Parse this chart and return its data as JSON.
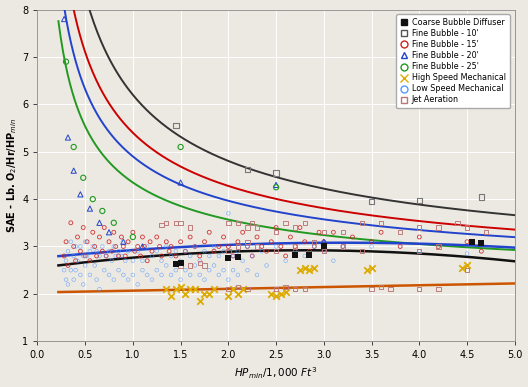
{
  "xlim": [
    0.0,
    5.0
  ],
  "ylim": [
    1.0,
    8.0
  ],
  "xticks": [
    0.0,
    0.5,
    1.0,
    1.5,
    2.0,
    2.5,
    3.0,
    3.5,
    4.0,
    4.5,
    5.0
  ],
  "yticks": [
    1,
    2,
    3,
    4,
    5,
    6,
    7,
    8
  ],
  "bg_color": "#ece9e2",
  "grid_color": "#ffffff",
  "coarse_bubble_pts": [
    [
      1.45,
      2.62
    ],
    [
      1.5,
      2.65
    ],
    [
      2.0,
      2.75
    ],
    [
      2.1,
      2.78
    ],
    [
      2.7,
      2.82
    ],
    [
      2.85,
      2.82
    ],
    [
      3.0,
      3.0
    ],
    [
      4.55,
      3.1
    ],
    [
      4.65,
      3.08
    ]
  ],
  "fine10_pts": [
    [
      1.45,
      5.55
    ],
    [
      2.2,
      4.62
    ],
    [
      2.5,
      4.55
    ],
    [
      3.5,
      3.95
    ],
    [
      4.0,
      3.97
    ],
    [
      4.65,
      4.05
    ]
  ],
  "fine15_scatter": [
    [
      0.28,
      2.8
    ],
    [
      0.3,
      3.1
    ],
    [
      0.32,
      2.6
    ],
    [
      0.35,
      3.5
    ],
    [
      0.38,
      3.0
    ],
    [
      0.4,
      2.7
    ],
    [
      0.42,
      3.2
    ],
    [
      0.45,
      2.9
    ],
    [
      0.48,
      3.4
    ],
    [
      0.5,
      2.8
    ],
    [
      0.52,
      3.1
    ],
    [
      0.55,
      2.7
    ],
    [
      0.58,
      3.3
    ],
    [
      0.6,
      3.0
    ],
    [
      0.62,
      2.8
    ],
    [
      0.65,
      3.2
    ],
    [
      0.68,
      2.9
    ],
    [
      0.7,
      3.4
    ],
    [
      0.72,
      2.8
    ],
    [
      0.75,
      3.1
    ],
    [
      0.78,
      2.9
    ],
    [
      0.8,
      3.3
    ],
    [
      0.82,
      3.0
    ],
    [
      0.85,
      2.8
    ],
    [
      0.88,
      3.2
    ],
    [
      0.9,
      3.0
    ],
    [
      0.92,
      2.8
    ],
    [
      0.95,
      3.1
    ],
    [
      1.0,
      3.3
    ],
    [
      1.02,
      2.9
    ],
    [
      1.05,
      3.0
    ],
    [
      1.08,
      2.8
    ],
    [
      1.1,
      3.2
    ],
    [
      1.12,
      3.0
    ],
    [
      1.15,
      2.7
    ],
    [
      1.18,
      3.1
    ],
    [
      1.2,
      2.9
    ],
    [
      1.25,
      3.2
    ],
    [
      1.28,
      3.0
    ],
    [
      1.3,
      2.8
    ],
    [
      1.35,
      3.1
    ],
    [
      1.38,
      2.9
    ],
    [
      1.4,
      3.0
    ],
    [
      1.45,
      2.8
    ],
    [
      1.5,
      3.1
    ],
    [
      1.55,
      2.9
    ],
    [
      1.6,
      3.2
    ],
    [
      1.65,
      3.0
    ],
    [
      1.7,
      2.8
    ],
    [
      1.75,
      3.1
    ],
    [
      1.8,
      3.3
    ],
    [
      1.85,
      2.9
    ],
    [
      1.9,
      3.0
    ],
    [
      1.95,
      3.2
    ],
    [
      2.0,
      3.0
    ],
    [
      2.05,
      2.8
    ],
    [
      2.1,
      3.1
    ],
    [
      2.15,
      3.3
    ],
    [
      2.2,
      3.0
    ],
    [
      2.25,
      2.8
    ],
    [
      2.3,
      3.2
    ],
    [
      2.35,
      3.0
    ],
    [
      2.4,
      2.9
    ],
    [
      2.45,
      3.1
    ],
    [
      2.5,
      3.4
    ],
    [
      2.55,
      3.0
    ],
    [
      2.6,
      2.8
    ],
    [
      2.65,
      3.2
    ],
    [
      2.7,
      3.0
    ],
    [
      2.75,
      3.4
    ],
    [
      2.8,
      3.1
    ],
    [
      2.85,
      2.9
    ],
    [
      2.9,
      3.0
    ],
    [
      2.95,
      3.3
    ],
    [
      3.0,
      3.1
    ],
    [
      3.1,
      3.3
    ],
    [
      3.2,
      3.0
    ],
    [
      3.3,
      3.2
    ],
    [
      3.5,
      3.1
    ],
    [
      3.6,
      3.3
    ],
    [
      3.8,
      3.0
    ],
    [
      4.0,
      3.2
    ],
    [
      4.2,
      3.0
    ],
    [
      4.5,
      3.1
    ],
    [
      4.65,
      2.9
    ]
  ],
  "fine20_scatter": [
    [
      0.28,
      7.8
    ],
    [
      0.32,
      5.3
    ],
    [
      0.38,
      4.6
    ],
    [
      0.45,
      4.1
    ],
    [
      0.55,
      3.8
    ],
    [
      0.65,
      3.5
    ],
    [
      0.75,
      3.3
    ],
    [
      0.9,
      3.1
    ],
    [
      1.1,
      3.0
    ],
    [
      1.5,
      4.35
    ],
    [
      2.5,
      4.3
    ],
    [
      3.0,
      3.1
    ]
  ],
  "fine25_scatter": [
    [
      0.3,
      6.9
    ],
    [
      0.38,
      5.1
    ],
    [
      0.48,
      4.45
    ],
    [
      0.58,
      4.0
    ],
    [
      0.68,
      3.75
    ],
    [
      0.8,
      3.5
    ],
    [
      1.0,
      3.2
    ],
    [
      1.5,
      5.1
    ],
    [
      2.5,
      4.25
    ]
  ],
  "high_speed_mech": [
    [
      1.35,
      2.1
    ],
    [
      1.4,
      1.95
    ],
    [
      1.45,
      2.1
    ],
    [
      1.5,
      2.15
    ],
    [
      1.55,
      2.0
    ],
    [
      1.6,
      2.1
    ],
    [
      1.65,
      2.1
    ],
    [
      1.7,
      1.85
    ],
    [
      1.75,
      2.0
    ],
    [
      1.8,
      2.0
    ],
    [
      1.85,
      2.1
    ],
    [
      2.0,
      1.95
    ],
    [
      2.05,
      2.1
    ],
    [
      2.1,
      2.0
    ],
    [
      2.15,
      2.1
    ],
    [
      2.45,
      2.0
    ],
    [
      2.5,
      1.95
    ],
    [
      2.55,
      2.0
    ],
    [
      2.6,
      2.05
    ],
    [
      2.75,
      2.5
    ],
    [
      2.8,
      2.55
    ],
    [
      2.85,
      2.5
    ],
    [
      2.9,
      2.55
    ],
    [
      3.45,
      2.5
    ],
    [
      3.5,
      2.55
    ],
    [
      4.45,
      2.55
    ],
    [
      4.5,
      2.6
    ]
  ],
  "low_speed_mech": [
    [
      0.28,
      2.5
    ],
    [
      0.3,
      2.7
    ],
    [
      0.3,
      2.3
    ],
    [
      0.32,
      2.9
    ],
    [
      0.32,
      2.2
    ],
    [
      0.35,
      3.1
    ],
    [
      0.35,
      2.5
    ],
    [
      0.38,
      2.8
    ],
    [
      0.38,
      2.3
    ],
    [
      0.4,
      3.0
    ],
    [
      0.4,
      2.5
    ],
    [
      0.42,
      2.7
    ],
    [
      0.45,
      3.0
    ],
    [
      0.45,
      2.4
    ],
    [
      0.48,
      2.8
    ],
    [
      0.48,
      2.2
    ],
    [
      0.5,
      3.1
    ],
    [
      0.5,
      2.6
    ],
    [
      0.52,
      2.8
    ],
    [
      0.55,
      2.9
    ],
    [
      0.55,
      2.4
    ],
    [
      0.58,
      3.0
    ],
    [
      0.6,
      2.6
    ],
    [
      0.62,
      2.9
    ],
    [
      0.62,
      2.3
    ],
    [
      0.65,
      2.8
    ],
    [
      0.65,
      2.1
    ],
    [
      0.68,
      3.0
    ],
    [
      0.7,
      2.5
    ],
    [
      0.72,
      2.8
    ],
    [
      0.75,
      2.9
    ],
    [
      0.75,
      2.4
    ],
    [
      0.78,
      2.7
    ],
    [
      0.8,
      3.0
    ],
    [
      0.8,
      2.3
    ],
    [
      0.82,
      2.8
    ],
    [
      0.85,
      2.9
    ],
    [
      0.85,
      2.5
    ],
    [
      0.88,
      2.8
    ],
    [
      0.9,
      3.1
    ],
    [
      0.9,
      2.4
    ],
    [
      0.92,
      2.7
    ],
    [
      0.95,
      2.9
    ],
    [
      0.95,
      2.3
    ],
    [
      1.0,
      2.7
    ],
    [
      1.0,
      2.4
    ],
    [
      1.05,
      2.9
    ],
    [
      1.05,
      2.2
    ],
    [
      1.1,
      2.7
    ],
    [
      1.1,
      2.5
    ],
    [
      1.15,
      3.0
    ],
    [
      1.15,
      2.4
    ],
    [
      1.2,
      2.8
    ],
    [
      1.2,
      2.3
    ],
    [
      1.25,
      2.9
    ],
    [
      1.25,
      2.5
    ],
    [
      1.3,
      2.7
    ],
    [
      1.3,
      2.4
    ],
    [
      1.35,
      3.0
    ],
    [
      1.35,
      2.6
    ],
    [
      1.4,
      2.8
    ],
    [
      1.4,
      2.4
    ],
    [
      1.45,
      2.9
    ],
    [
      1.45,
      2.5
    ],
    [
      1.5,
      2.7
    ],
    [
      1.5,
      2.3
    ],
    [
      1.55,
      2.9
    ],
    [
      1.55,
      2.5
    ],
    [
      1.6,
      2.8
    ],
    [
      1.6,
      2.4
    ],
    [
      1.65,
      3.0
    ],
    [
      1.65,
      2.6
    ],
    [
      1.7,
      2.7
    ],
    [
      1.7,
      2.4
    ],
    [
      1.75,
      2.9
    ],
    [
      1.75,
      2.3
    ],
    [
      1.8,
      2.8
    ],
    [
      1.8,
      2.5
    ],
    [
      1.85,
      3.0
    ],
    [
      1.85,
      2.6
    ],
    [
      1.9,
      2.8
    ],
    [
      1.9,
      2.4
    ],
    [
      1.95,
      2.9
    ],
    [
      1.95,
      2.5
    ],
    [
      2.0,
      3.7
    ],
    [
      2.0,
      2.3
    ],
    [
      2.05,
      2.8
    ],
    [
      2.05,
      2.5
    ],
    [
      2.1,
      2.9
    ],
    [
      2.1,
      2.4
    ],
    [
      2.15,
      2.7
    ],
    [
      2.2,
      3.0
    ],
    [
      2.2,
      2.5
    ],
    [
      2.25,
      2.8
    ],
    [
      2.3,
      2.4
    ],
    [
      2.35,
      2.9
    ],
    [
      2.4,
      2.6
    ],
    [
      2.5,
      3.0
    ],
    [
      2.6,
      2.7
    ],
    [
      2.7,
      2.9
    ],
    [
      2.8,
      2.8
    ],
    [
      2.9,
      3.0
    ],
    [
      3.0,
      2.9
    ],
    [
      3.1,
      2.7
    ],
    [
      3.2,
      3.0
    ],
    [
      3.5,
      3.0
    ],
    [
      4.0,
      2.9
    ],
    [
      4.5,
      2.85
    ]
  ],
  "jet_aeration": [
    [
      1.3,
      3.45
    ],
    [
      1.35,
      3.5
    ],
    [
      1.45,
      3.5
    ],
    [
      1.5,
      3.5
    ],
    [
      1.6,
      3.4
    ],
    [
      1.5,
      2.6
    ],
    [
      1.6,
      2.6
    ],
    [
      1.7,
      2.65
    ],
    [
      1.75,
      2.6
    ],
    [
      2.0,
      3.5
    ],
    [
      2.1,
      3.5
    ],
    [
      2.2,
      3.4
    ],
    [
      2.25,
      3.5
    ],
    [
      2.3,
      3.4
    ],
    [
      2.0,
      2.9
    ],
    [
      2.1,
      3.0
    ],
    [
      2.2,
      3.1
    ],
    [
      2.3,
      3.0
    ],
    [
      2.0,
      2.1
    ],
    [
      2.1,
      2.15
    ],
    [
      2.2,
      2.1
    ],
    [
      2.5,
      3.3
    ],
    [
      2.6,
      3.5
    ],
    [
      2.7,
      3.4
    ],
    [
      2.8,
      3.5
    ],
    [
      2.5,
      2.9
    ],
    [
      2.7,
      3.0
    ],
    [
      2.9,
      3.1
    ],
    [
      2.5,
      2.1
    ],
    [
      2.6,
      2.15
    ],
    [
      2.7,
      2.1
    ],
    [
      2.8,
      2.1
    ],
    [
      3.0,
      3.3
    ],
    [
      3.2,
      3.3
    ],
    [
      3.4,
      3.5
    ],
    [
      3.6,
      3.5
    ],
    [
      3.8,
      3.3
    ],
    [
      3.0,
      2.9
    ],
    [
      3.2,
      3.0
    ],
    [
      3.4,
      2.9
    ],
    [
      3.5,
      2.1
    ],
    [
      3.6,
      2.15
    ],
    [
      3.7,
      2.1
    ],
    [
      4.0,
      3.4
    ],
    [
      4.2,
      3.4
    ],
    [
      4.4,
      3.5
    ],
    [
      4.0,
      2.9
    ],
    [
      4.2,
      3.0
    ],
    [
      4.0,
      2.1
    ],
    [
      4.2,
      2.1
    ],
    [
      4.5,
      3.4
    ],
    [
      4.7,
      3.3
    ],
    [
      4.5,
      2.5
    ]
  ],
  "curve_coarse_color": "#111111",
  "curve_fine10_color": "#333333",
  "curve_fine15_color": "#cc0000",
  "curve_fine20_color": "#2244cc",
  "curve_fine25_color": "#229922",
  "curve_high_speed_color": "#cc5500",
  "curve_low_speed_color": "#2244cc",
  "marker_coarse_color": "#111111",
  "marker_fine10_color": "#777777",
  "marker_fine15_color": "#cc2222",
  "marker_fine20_color": "#2244cc",
  "marker_fine25_color": "#229922",
  "marker_high_speed_color": "#ddaa00",
  "marker_low_speed_color": "#5599ff",
  "marker_jet_color": "#bb7777"
}
